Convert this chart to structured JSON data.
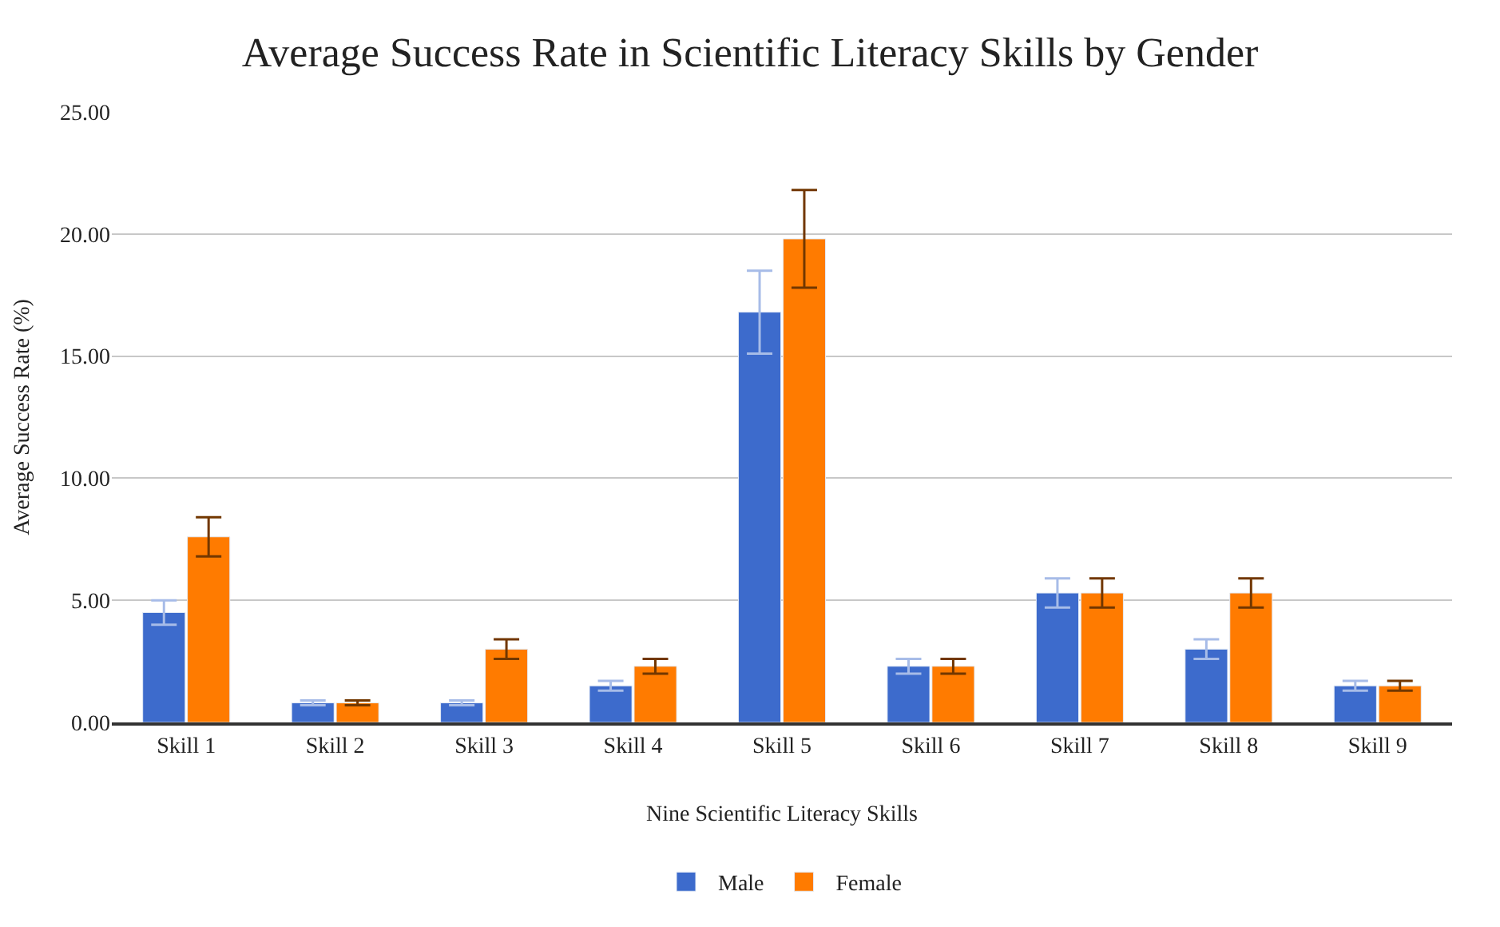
{
  "chart_data": {
    "type": "bar",
    "title": "Average Success Rate in Scientific Literacy Skills by Gender",
    "xlabel": "Nine Scientific Literacy Skills",
    "ylabel": "Average Success Rate (%)",
    "categories": [
      "Skill 1",
      "Skill 2",
      "Skill 3",
      "Skill 4",
      "Skill 5",
      "Skill 6",
      "Skill 7",
      "Skill 8",
      "Skill 9"
    ],
    "series": [
      {
        "name": "Male",
        "color": "#3d6bcc",
        "values": [
          4.5,
          0.8,
          0.8,
          1.5,
          16.8,
          2.3,
          5.3,
          3.0,
          1.5
        ],
        "errors": [
          0.5,
          0.1,
          0.1,
          0.2,
          1.7,
          0.3,
          0.6,
          0.4,
          0.2
        ]
      },
      {
        "name": "Female",
        "color": "#ff7b00",
        "values": [
          7.6,
          0.8,
          3.0,
          2.3,
          19.8,
          2.3,
          5.3,
          5.3,
          1.5
        ],
        "errors": [
          0.8,
          0.1,
          0.4,
          0.3,
          2.0,
          0.3,
          0.6,
          0.6,
          0.2
        ]
      }
    ],
    "ylim": [
      0,
      25
    ],
    "yticks": [
      {
        "value": 0,
        "label": "0.00"
      },
      {
        "value": 5,
        "label": "5.00"
      },
      {
        "value": 10,
        "label": "10.00"
      },
      {
        "value": 15,
        "label": "15.00"
      },
      {
        "value": 20,
        "label": "20.00"
      },
      {
        "value": 25,
        "label": "25.00"
      }
    ],
    "grid": "y",
    "legend": "bottom"
  }
}
